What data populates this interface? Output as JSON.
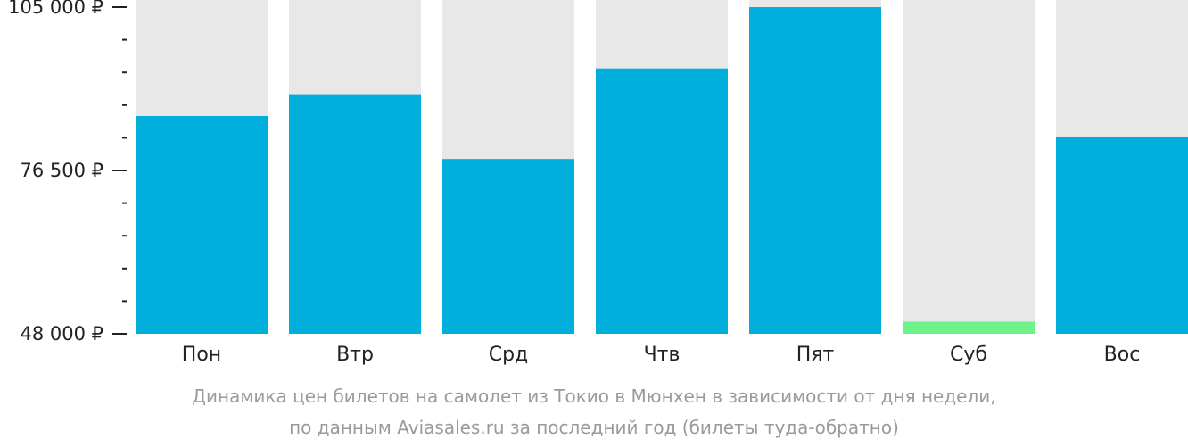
{
  "chart_data": {
    "type": "bar",
    "categories": [
      "Пон",
      "Втр",
      "Срд",
      "Чтв",
      "Пят",
      "Суб",
      "Вос"
    ],
    "values": [
      86000,
      89800,
      78500,
      94300,
      105000,
      50100,
      82300
    ],
    "ylim": [
      48000,
      105000
    ],
    "yticks": [
      {
        "value": 105000,
        "label": "105 000 ₽"
      },
      {
        "value": 76500,
        "label": "76 500 ₽"
      },
      {
        "value": 48000,
        "label": "48 000 ₽"
      }
    ],
    "minor_ticks": [
      99300,
      93600,
      87900,
      82200,
      70800,
      65100,
      59400,
      53700
    ],
    "grid": false,
    "colors": {
      "bar": "#00afdc",
      "min_bar": "#6ef28a",
      "track": "#e8e8e8",
      "axis": "#222222"
    },
    "min_index": 5
  },
  "caption": {
    "line1": "Динамика цен билетов на самолет из Токио в Мюнхен в зависимости от дня недели,",
    "line2": "по данным Aviasales.ru за последний год (билеты туда-обратно)"
  }
}
